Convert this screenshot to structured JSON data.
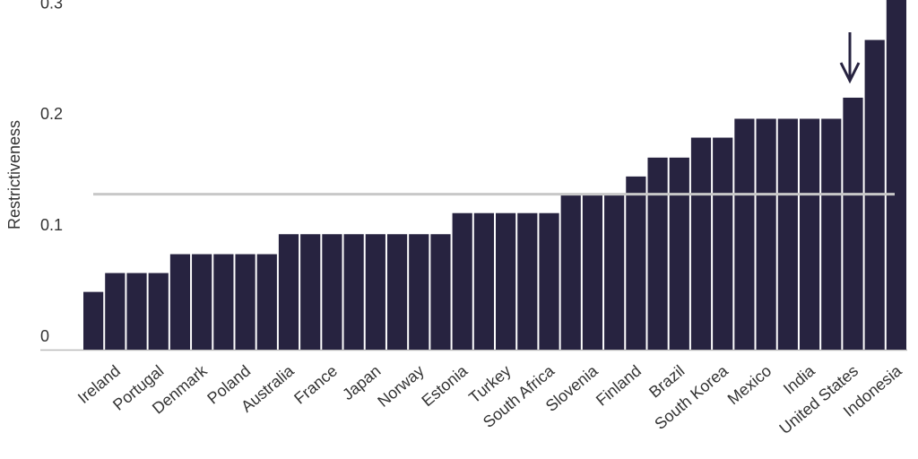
{
  "chart_data": {
    "type": "bar",
    "y_label": "Restrictiveness",
    "categories": [
      null,
      "Ireland",
      null,
      "Portugal",
      null,
      "Denmark",
      null,
      "Poland",
      null,
      "Australia",
      null,
      "France",
      null,
      "Japan",
      null,
      "Norway",
      null,
      "Estonia",
      null,
      "Turkey",
      null,
      "South Africa",
      null,
      "Slovenia",
      null,
      "Finland",
      null,
      "Brazil",
      null,
      "South Korea",
      null,
      "Mexico",
      null,
      "India",
      null,
      "United States",
      null,
      "Indonesia"
    ],
    "values": [
      0.052,
      0.069,
      0.069,
      0.069,
      0.086,
      0.086,
      0.086,
      0.086,
      0.086,
      0.104,
      0.104,
      0.104,
      0.104,
      0.104,
      0.104,
      0.104,
      0.104,
      0.123,
      0.123,
      0.123,
      0.123,
      0.123,
      0.14,
      0.14,
      0.14,
      0.156,
      0.173,
      0.173,
      0.191,
      0.191,
      0.208,
      0.208,
      0.208,
      0.208,
      0.208,
      0.227,
      0.279,
      0.32
    ],
    "color": "#272340",
    "reference_line": 0.14,
    "ylim": [
      0,
      0.315
    ],
    "yticks": [
      0,
      0.1,
      0.2,
      0.3
    ],
    "grid": false
  }
}
